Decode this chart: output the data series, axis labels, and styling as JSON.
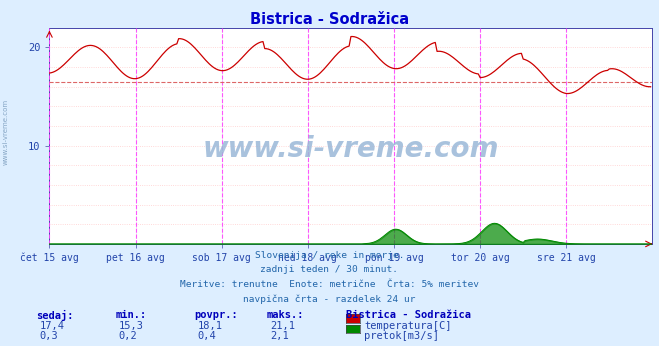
{
  "title": "Bistrica - Sodražica",
  "title_color": "#0000cc",
  "bg_color": "#ddeeff",
  "plot_bg_color": "#ffffff",
  "xmin": 0,
  "xmax": 336,
  "ymin": 0,
  "ymax": 22,
  "x_tick_labels": [
    "čet 15 avg",
    "pet 16 avg",
    "sob 17 avg",
    "ned 18 avg",
    "pon 19 avg",
    "tor 20 avg",
    "sre 21 avg"
  ],
  "x_tick_positions": [
    0,
    48,
    96,
    144,
    192,
    240,
    288
  ],
  "vline_color": "#ff44ff",
  "hline_color": "#dd0000",
  "hline_value": 16.5,
  "temp_color": "#cc0000",
  "flow_color": "#008800",
  "watermark": "www.si-vreme.com",
  "subtitle_lines": [
    "Slovenija / reke in morje.",
    "zadnji teden / 30 minut.",
    "Meritve: trenutne  Enote: metrične  Črta: 5% meritev",
    "navpična črta - razdelek 24 ur"
  ],
  "legend_title": "Bistrica - Sodražica",
  "legend_items": [
    "temperatura[C]",
    "pretok[m3/s]"
  ],
  "legend_colors": [
    "#cc0000",
    "#008800"
  ],
  "table_headers": [
    "sedaj:",
    "min.:",
    "povpr.:",
    "maks.:"
  ],
  "table_row1": [
    "17,4",
    "15,3",
    "18,1",
    "21,1"
  ],
  "table_row2": [
    "0,3",
    "0,2",
    "0,4",
    "2,1"
  ],
  "grid_dot_color": "#ffcccc",
  "axis_color": "#4444aa",
  "tick_label_color": "#2244aa",
  "left_watermark": "www.si-vreme.com"
}
